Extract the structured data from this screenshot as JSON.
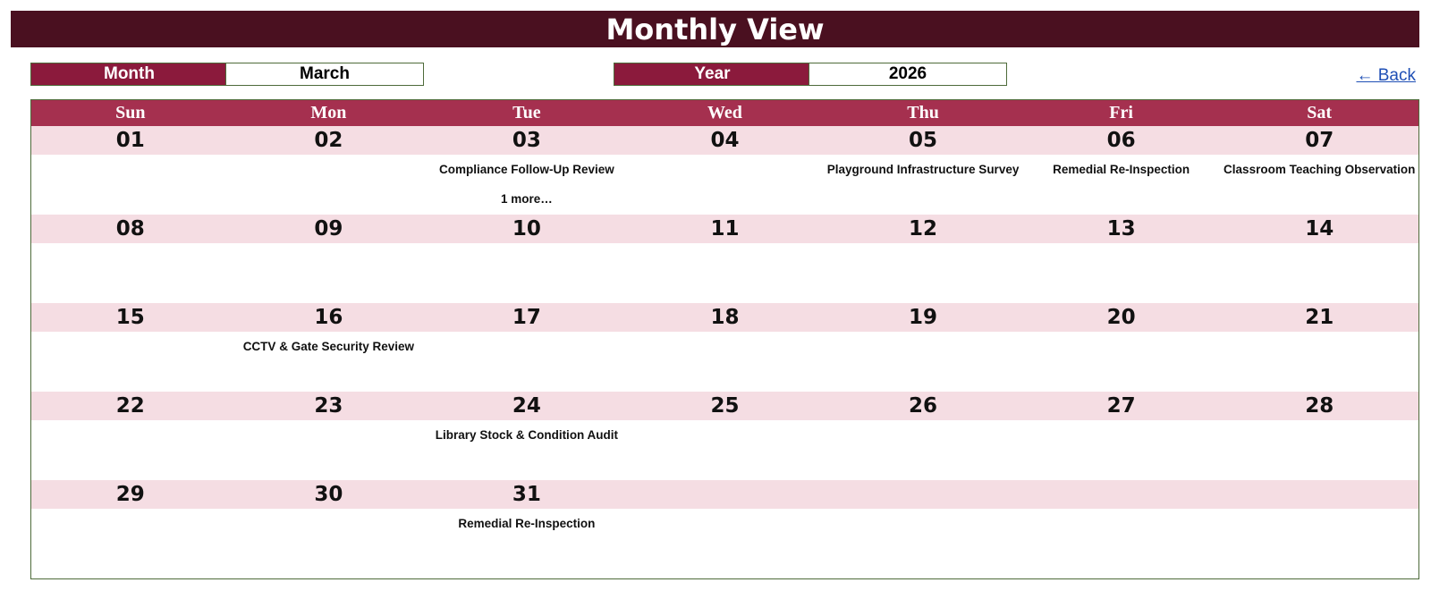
{
  "title": "Monthly View",
  "controls": {
    "month_label": "Month",
    "month_value": "March",
    "year_label": "Year",
    "year_value": "2026",
    "back_link": "← Back"
  },
  "weekdays": [
    "Sun",
    "Mon",
    "Tue",
    "Wed",
    "Thu",
    "Fri",
    "Sat"
  ],
  "weeks": [
    [
      {
        "day": "01",
        "events": []
      },
      {
        "day": "02",
        "events": []
      },
      {
        "day": "03",
        "events": [
          "Compliance Follow-Up Review"
        ],
        "more": "1 more…"
      },
      {
        "day": "04",
        "events": []
      },
      {
        "day": "05",
        "events": [
          "Playground Infrastructure Survey"
        ]
      },
      {
        "day": "06",
        "events": [
          "Remedial Re-Inspection"
        ]
      },
      {
        "day": "07",
        "events": [
          "Classroom Teaching Observation"
        ]
      }
    ],
    [
      {
        "day": "08",
        "events": []
      },
      {
        "day": "09",
        "events": []
      },
      {
        "day": "10",
        "events": []
      },
      {
        "day": "11",
        "events": []
      },
      {
        "day": "12",
        "events": []
      },
      {
        "day": "13",
        "events": []
      },
      {
        "day": "14",
        "events": []
      }
    ],
    [
      {
        "day": "15",
        "events": []
      },
      {
        "day": "16",
        "events": [
          "CCTV & Gate Security Review"
        ]
      },
      {
        "day": "17",
        "events": []
      },
      {
        "day": "18",
        "events": []
      },
      {
        "day": "19",
        "events": []
      },
      {
        "day": "20",
        "events": []
      },
      {
        "day": "21",
        "events": []
      }
    ],
    [
      {
        "day": "22",
        "events": []
      },
      {
        "day": "23",
        "events": []
      },
      {
        "day": "24",
        "events": [
          "Library Stock & Condition Audit"
        ]
      },
      {
        "day": "25",
        "events": []
      },
      {
        "day": "26",
        "events": []
      },
      {
        "day": "27",
        "events": []
      },
      {
        "day": "28",
        "events": []
      }
    ],
    [
      {
        "day": "29",
        "events": []
      },
      {
        "day": "30",
        "events": []
      },
      {
        "day": "31",
        "events": [
          "Remedial Re-Inspection"
        ]
      },
      {
        "day": "",
        "events": []
      },
      {
        "day": "",
        "events": []
      },
      {
        "day": "",
        "events": []
      },
      {
        "day": "",
        "events": []
      }
    ]
  ],
  "colors": {
    "title_bg": "#4a1020",
    "label_bg": "#8b1a3c",
    "weekday_bg": "#a5304f",
    "day_band_bg": "#f5dde3",
    "border": "#4e6b3a",
    "link": "#1f4fb5"
  }
}
